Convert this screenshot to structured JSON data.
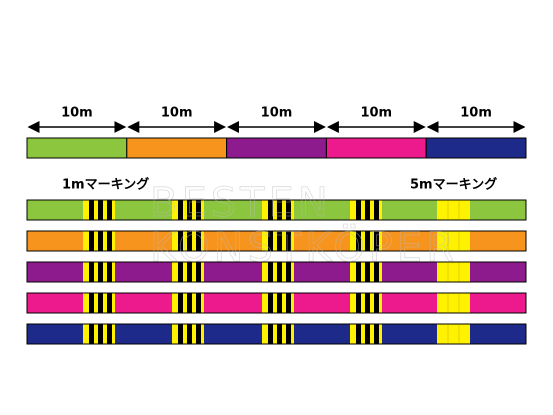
{
  "segments": [
    {
      "label": "10m",
      "color": "#8cc63e"
    },
    {
      "label": "10m",
      "color": "#f7941d"
    },
    {
      "label": "10m",
      "color": "#8e1b8e"
    },
    {
      "label": "10m",
      "color": "#ec1a8c"
    },
    {
      "label": "10m",
      "color": "#1d2a8a"
    }
  ],
  "markings": {
    "small_label": "1mマーキング",
    "large_label": "5mマーキング",
    "color": "#fff200"
  },
  "lines": [
    "#8cc63e",
    "#f7941d",
    "#8e1b8e",
    "#ec1a8c",
    "#1d2a8a"
  ],
  "watermark": [
    "BESTEN",
    "KONSTKÖPER"
  ]
}
